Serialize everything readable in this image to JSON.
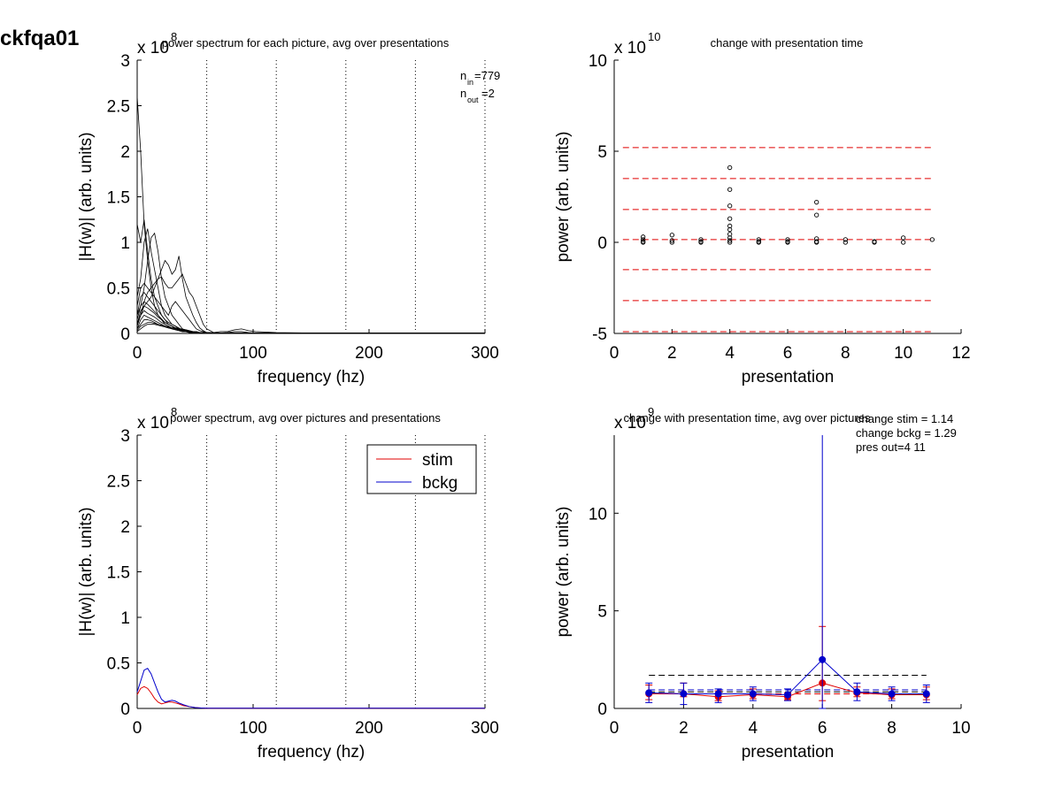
{
  "figure": {
    "title": "ckfqa01"
  },
  "chart_data": [
    {
      "id": "p1",
      "type": "line",
      "title": "power spectrum for each picture, avg over presentations",
      "xlabel": "frequency (hz)",
      "ylabel": "|H(w)| (arb. units)",
      "multiplier": "x 10",
      "multiplier_exp": "8",
      "xlim": [
        0,
        300
      ],
      "ylim": [
        0,
        3
      ],
      "xticks": [
        "0",
        "100",
        "200",
        "300"
      ],
      "yticks": [
        "0",
        "0.5",
        "1",
        "1.5",
        "2",
        "2.5",
        "3"
      ],
      "vlines": [
        60,
        120,
        180,
        240,
        300
      ],
      "annotation": {
        "n_in": "n",
        "n_in_sub": "in",
        "n_in_val": "=779",
        "n_out": "n",
        "n_out_sub": "out",
        "n_out_val": "=2"
      },
      "x": [
        0,
        3,
        6,
        9,
        12,
        15,
        18,
        21,
        24,
        27,
        30,
        33,
        36,
        39,
        42,
        45,
        48,
        51,
        54,
        57,
        60,
        66,
        72,
        78,
        84,
        90,
        96,
        102,
        120,
        150,
        180,
        210,
        240,
        270,
        300
      ],
      "series": [
        {
          "values": [
            2.6,
            2.0,
            1.2,
            0.8,
            0.5,
            0.3,
            0.2,
            0.15,
            0.1,
            0.08,
            0.05,
            0.04,
            0.03,
            0.02,
            0.02,
            0.01,
            0.01,
            0.01,
            0.01,
            0.01,
            0.005,
            0.005,
            0.005,
            0.005,
            0.005,
            0.005,
            0.005,
            0.005,
            0.002,
            0.002,
            0.002,
            0.002,
            0.002,
            0.002,
            0.002
          ]
        },
        {
          "values": [
            1.2,
            1.0,
            1.25,
            0.9,
            0.6,
            0.4,
            0.3,
            0.2,
            0.15,
            0.1,
            0.08,
            0.05,
            0.04,
            0.03,
            0.02,
            0.01,
            0.01,
            0.01,
            0.01,
            0.01,
            0.005,
            0.005,
            0.005,
            0.005,
            0.005,
            0.005,
            0.005,
            0.005,
            0.002,
            0.002,
            0.002,
            0.002,
            0.002,
            0.002,
            0.002
          ]
        },
        {
          "values": [
            0.4,
            0.6,
            1.0,
            1.15,
            0.9,
            0.7,
            0.5,
            0.3,
            0.2,
            0.15,
            0.1,
            0.08,
            0.05,
            0.04,
            0.03,
            0.02,
            0.01,
            0.01,
            0.01,
            0.01,
            0.005,
            0.005,
            0.005,
            0.005,
            0.005,
            0.005,
            0.005,
            0.005,
            0.002,
            0.002,
            0.002,
            0.002,
            0.002,
            0.002,
            0.002
          ]
        },
        {
          "values": [
            0.2,
            0.3,
            0.5,
            0.8,
            1.05,
            1.1,
            0.9,
            0.6,
            0.4,
            0.3,
            0.2,
            0.15,
            0.1,
            0.05,
            0.03,
            0.02,
            0.01,
            0.01,
            0.01,
            0.01,
            0.005,
            0.005,
            0.005,
            0.005,
            0.005,
            0.005,
            0.005,
            0.005,
            0.002,
            0.002,
            0.002,
            0.002,
            0.002,
            0.002,
            0.002
          ]
        },
        {
          "values": [
            0.1,
            0.2,
            0.3,
            0.35,
            0.4,
            0.5,
            0.6,
            0.7,
            0.8,
            0.75,
            0.65,
            0.7,
            0.85,
            0.6,
            0.4,
            0.3,
            0.2,
            0.12,
            0.06,
            0.03,
            0.01,
            0.005,
            0.005,
            0.005,
            0.005,
            0.005,
            0.005,
            0.005,
            0.002,
            0.002,
            0.002,
            0.002,
            0.002,
            0.002,
            0.002
          ]
        },
        {
          "values": [
            0.1,
            0.2,
            0.35,
            0.45,
            0.5,
            0.55,
            0.6,
            0.62,
            0.55,
            0.5,
            0.5,
            0.55,
            0.6,
            0.65,
            0.55,
            0.45,
            0.4,
            0.3,
            0.2,
            0.1,
            0.05,
            0.01,
            0.005,
            0.005,
            0.005,
            0.005,
            0.005,
            0.005,
            0.002,
            0.002,
            0.002,
            0.002,
            0.002,
            0.002,
            0.002
          ]
        },
        {
          "values": [
            0.3,
            0.5,
            0.55,
            0.5,
            0.45,
            0.4,
            0.35,
            0.3,
            0.25,
            0.2,
            0.3,
            0.35,
            0.3,
            0.25,
            0.2,
            0.15,
            0.1,
            0.05,
            0.03,
            0.02,
            0.01,
            0.01,
            0.02,
            0.02,
            0.04,
            0.05,
            0.03,
            0.02,
            0.01,
            0.005,
            0.005,
            0.005,
            0.002,
            0.002,
            0.002
          ]
        },
        {
          "values": [
            0.2,
            0.4,
            0.45,
            0.4,
            0.35,
            0.3,
            0.25,
            0.2,
            0.15,
            0.12,
            0.1,
            0.08,
            0.06,
            0.04,
            0.03,
            0.02,
            0.01,
            0.01,
            0.01,
            0.01,
            0.005,
            0.005,
            0.005,
            0.005,
            0.005,
            0.005,
            0.005,
            0.005,
            0.002,
            0.002,
            0.002,
            0.002,
            0.002,
            0.002,
            0.002
          ]
        },
        {
          "values": [
            0.15,
            0.3,
            0.35,
            0.32,
            0.28,
            0.24,
            0.2,
            0.16,
            0.12,
            0.1,
            0.08,
            0.06,
            0.05,
            0.04,
            0.03,
            0.02,
            0.01,
            0.01,
            0.01,
            0.01,
            0.005,
            0.005,
            0.005,
            0.005,
            0.005,
            0.005,
            0.005,
            0.005,
            0.002,
            0.002,
            0.002,
            0.002,
            0.002,
            0.002,
            0.002
          ]
        },
        {
          "values": [
            0.1,
            0.25,
            0.3,
            0.28,
            0.25,
            0.22,
            0.18,
            0.15,
            0.12,
            0.1,
            0.08,
            0.06,
            0.05,
            0.04,
            0.03,
            0.02,
            0.02,
            0.01,
            0.01,
            0.01,
            0.005,
            0.005,
            0.005,
            0.005,
            0.005,
            0.005,
            0.005,
            0.005,
            0.002,
            0.002,
            0.002,
            0.002,
            0.002,
            0.002,
            0.002
          ]
        },
        {
          "values": [
            0.08,
            0.2,
            0.25,
            0.22,
            0.2,
            0.18,
            0.15,
            0.12,
            0.1,
            0.08,
            0.06,
            0.05,
            0.04,
            0.03,
            0.02,
            0.02,
            0.01,
            0.01,
            0.01,
            0.01,
            0.005,
            0.005,
            0.005,
            0.005,
            0.005,
            0.005,
            0.005,
            0.005,
            0.002,
            0.002,
            0.002,
            0.002,
            0.002,
            0.002,
            0.002
          ]
        },
        {
          "values": [
            0.05,
            0.15,
            0.2,
            0.18,
            0.16,
            0.14,
            0.12,
            0.1,
            0.08,
            0.06,
            0.05,
            0.04,
            0.03,
            0.02,
            0.02,
            0.01,
            0.01,
            0.01,
            0.01,
            0.01,
            0.005,
            0.005,
            0.005,
            0.005,
            0.005,
            0.005,
            0.005,
            0.005,
            0.002,
            0.002,
            0.002,
            0.002,
            0.002,
            0.002,
            0.002
          ]
        },
        {
          "values": [
            0.05,
            0.1,
            0.15,
            0.15,
            0.14,
            0.12,
            0.1,
            0.09,
            0.08,
            0.07,
            0.06,
            0.05,
            0.04,
            0.03,
            0.03,
            0.02,
            0.02,
            0.01,
            0.01,
            0.01,
            0.01,
            0.005,
            0.005,
            0.005,
            0.005,
            0.005,
            0.005,
            0.005,
            0.002,
            0.002,
            0.002,
            0.002,
            0.002,
            0.002,
            0.002
          ]
        },
        {
          "values": [
            0.03,
            0.08,
            0.1,
            0.12,
            0.12,
            0.11,
            0.1,
            0.09,
            0.08,
            0.07,
            0.06,
            0.06,
            0.05,
            0.05,
            0.04,
            0.03,
            0.02,
            0.02,
            0.01,
            0.01,
            0.01,
            0.005,
            0.005,
            0.005,
            0.005,
            0.005,
            0.005,
            0.005,
            0.002,
            0.002,
            0.002,
            0.002,
            0.002,
            0.002,
            0.002
          ]
        },
        {
          "values": [
            0.02,
            0.05,
            0.08,
            0.1,
            0.1,
            0.1,
            0.09,
            0.08,
            0.07,
            0.06,
            0.06,
            0.05,
            0.05,
            0.04,
            0.04,
            0.03,
            0.02,
            0.02,
            0.01,
            0.01,
            0.01,
            0.005,
            0.005,
            0.01,
            0.02,
            0.02,
            0.01,
            0.005,
            0.002,
            0.002,
            0.002,
            0.002,
            0.002,
            0.002,
            0.002
          ]
        }
      ]
    },
    {
      "id": "p2",
      "type": "scatter",
      "title": "change with presentation time",
      "xlabel": "presentation",
      "ylabel": "power (arb. units)",
      "multiplier": "x 10",
      "multiplier_exp": "10",
      "xlim": [
        0,
        12
      ],
      "ylim": [
        -5,
        10
      ],
      "xticks": [
        "0",
        "2",
        "4",
        "6",
        "8",
        "10",
        "12"
      ],
      "yticks": [
        "-5",
        "0",
        "5",
        "10"
      ],
      "hlines": [
        5.2,
        3.5,
        1.8,
        0.15,
        -1.5,
        -3.2,
        -4.9
      ],
      "points": [
        {
          "x": 1,
          "y": 0.3
        },
        {
          "x": 1,
          "y": 0.15
        },
        {
          "x": 1,
          "y": 0.05
        },
        {
          "x": 1,
          "y": 0.0
        },
        {
          "x": 2,
          "y": 0.4
        },
        {
          "x": 2,
          "y": 0.1
        },
        {
          "x": 2,
          "y": 0.0
        },
        {
          "x": 3,
          "y": 0.15
        },
        {
          "x": 3,
          "y": 0.05
        },
        {
          "x": 3,
          "y": 0.0
        },
        {
          "x": 4,
          "y": 4.1
        },
        {
          "x": 4,
          "y": 2.9
        },
        {
          "x": 4,
          "y": 2.0
        },
        {
          "x": 4,
          "y": 1.3
        },
        {
          "x": 4,
          "y": 0.9
        },
        {
          "x": 4,
          "y": 0.7
        },
        {
          "x": 4,
          "y": 0.45
        },
        {
          "x": 4,
          "y": 0.25
        },
        {
          "x": 4,
          "y": 0.1
        },
        {
          "x": 4,
          "y": 0.0
        },
        {
          "x": 5,
          "y": 0.15
        },
        {
          "x": 5,
          "y": 0.05
        },
        {
          "x": 5,
          "y": 0.0
        },
        {
          "x": 6,
          "y": 0.15
        },
        {
          "x": 6,
          "y": 0.05
        },
        {
          "x": 6,
          "y": 0.0
        },
        {
          "x": 7,
          "y": 2.2
        },
        {
          "x": 7,
          "y": 1.5
        },
        {
          "x": 7,
          "y": 0.2
        },
        {
          "x": 7,
          "y": 0.05
        },
        {
          "x": 7,
          "y": 0.0
        },
        {
          "x": 8,
          "y": 0.15
        },
        {
          "x": 8,
          "y": 0.0
        },
        {
          "x": 9,
          "y": 0.05
        },
        {
          "x": 9,
          "y": 0.0
        },
        {
          "x": 10,
          "y": 0.25
        },
        {
          "x": 10,
          "y": 0.0
        },
        {
          "x": 11,
          "y": 0.15
        }
      ]
    },
    {
      "id": "p3",
      "type": "line",
      "title": "power spectrum, avg over pictures and presentations",
      "xlabel": "frequency (hz)",
      "ylabel": "|H(w)| (arb. units)",
      "multiplier": "x 10",
      "multiplier_exp": "8",
      "xlim": [
        0,
        300
      ],
      "ylim": [
        0,
        3
      ],
      "xticks": [
        "0",
        "100",
        "200",
        "300"
      ],
      "yticks": [
        "0",
        "0.5",
        "1",
        "1.5",
        "2",
        "2.5",
        "3"
      ],
      "vlines": [
        60,
        120,
        180,
        240,
        300
      ],
      "legend": {
        "position": "top-right"
      },
      "x": [
        0,
        3,
        6,
        9,
        12,
        15,
        18,
        21,
        24,
        27,
        30,
        33,
        36,
        40,
        45,
        50,
        55,
        60,
        70,
        80,
        100,
        150,
        200,
        250,
        300
      ],
      "series": [
        {
          "name": "stim",
          "color": "#e00000",
          "values": [
            0.15,
            0.22,
            0.24,
            0.22,
            0.17,
            0.11,
            0.07,
            0.05,
            0.06,
            0.07,
            0.07,
            0.06,
            0.05,
            0.03,
            0.02,
            0.01,
            0.005,
            0.002,
            0.002,
            0.002,
            0.002,
            0.002,
            0.002,
            0.002,
            0.002
          ]
        },
        {
          "name": "bckg",
          "color": "#0000cc",
          "values": [
            0.18,
            0.3,
            0.42,
            0.44,
            0.38,
            0.28,
            0.18,
            0.1,
            0.07,
            0.08,
            0.09,
            0.08,
            0.06,
            0.04,
            0.02,
            0.01,
            0.005,
            0.002,
            0.002,
            0.002,
            0.002,
            0.002,
            0.002,
            0.002,
            0.002
          ]
        }
      ]
    },
    {
      "id": "p4",
      "type": "line",
      "title": "change with presentation time, avg over pictures",
      "xlabel": "presentation",
      "ylabel": "power (arb. units)",
      "multiplier": "x 10",
      "multiplier_exp": "9",
      "xlim": [
        0,
        10
      ],
      "ylim": [
        0,
        14
      ],
      "xticks": [
        "0",
        "2",
        "4",
        "6",
        "8",
        "10"
      ],
      "yticks": [
        "0",
        "5",
        "10"
      ],
      "annotations": [
        "change stim = 1.14",
        "change bckg = 1.29",
        "pres out=4 11"
      ],
      "x": [
        1,
        2,
        3,
        4,
        5,
        6,
        7,
        8,
        9
      ],
      "hlines": [
        {
          "y": 1.7,
          "color": "#000000",
          "from": 1,
          "to": 9
        },
        {
          "y": 0.95,
          "color": "#0000cc",
          "from": 1,
          "to": 9
        },
        {
          "y": 0.85,
          "color": "#000000",
          "from": 1,
          "to": 9
        },
        {
          "y": 0.75,
          "color": "#e00000",
          "from": 1,
          "to": 9
        }
      ],
      "series": [
        {
          "name": "stim",
          "color": "#e00000",
          "values": [
            0.75,
            0.75,
            0.6,
            0.7,
            0.6,
            1.3,
            0.8,
            0.7,
            0.7
          ],
          "err_lo": [
            0.45,
            0.6,
            0.4,
            0.5,
            0.45,
            0.4,
            0.6,
            0.5,
            0.45
          ],
          "err_hi": [
            1.2,
            1.3,
            0.9,
            1.0,
            0.8,
            4.2,
            1.1,
            1.0,
            1.1
          ]
        },
        {
          "name": "bckg",
          "color": "#0000cc",
          "values": [
            0.8,
            0.75,
            0.75,
            0.75,
            0.7,
            2.5,
            0.85,
            0.75,
            0.75
          ],
          "err_lo": [
            0.3,
            0.2,
            0.3,
            0.4,
            0.4,
            0.0,
            0.4,
            0.4,
            0.3
          ],
          "err_hi": [
            1.3,
            1.3,
            1.0,
            1.1,
            1.0,
            14.5,
            1.3,
            1.1,
            1.2
          ]
        }
      ]
    }
  ]
}
